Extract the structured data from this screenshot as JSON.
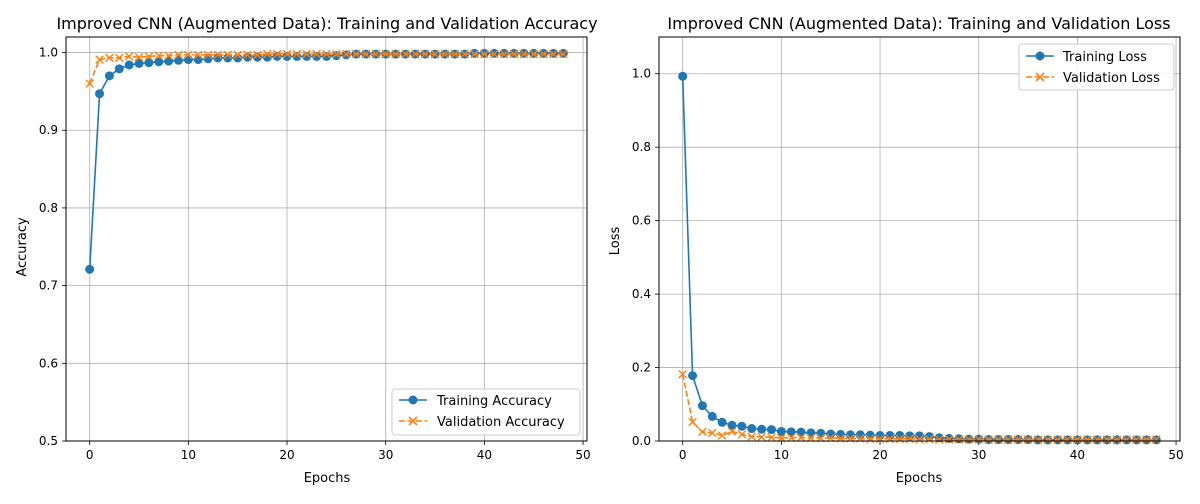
{
  "colors": {
    "training": "#1f77b4",
    "validation": "#ff7f0e",
    "grid": "#b0b0b0",
    "frame": "#000000"
  },
  "chart_data": [
    {
      "type": "line",
      "title": "Improved CNN (Augmented Data): Training and Validation Accuracy",
      "xlabel": "Epochs",
      "ylabel": "Accuracy",
      "xlim": [
        -2.4,
        50.4
      ],
      "ylim": [
        0.5,
        1.02
      ],
      "xticks": [
        0,
        10,
        20,
        30,
        40,
        50
      ],
      "yticks": [
        0.5,
        0.6,
        0.7,
        0.8,
        0.9,
        1.0
      ],
      "xtick_labels": [
        "0",
        "10",
        "20",
        "30",
        "40",
        "50"
      ],
      "ytick_labels": [
        "0.5",
        "0.6",
        "0.7",
        "0.8",
        "0.9",
        "1.0"
      ],
      "grid": true,
      "legend": "bottom-right",
      "series": [
        {
          "name": "Training Accuracy",
          "style": "solid",
          "marker": "circle",
          "color": "#1f77b4",
          "x": [
            0,
            1,
            2,
            3,
            4,
            5,
            6,
            7,
            8,
            9,
            10,
            11,
            12,
            13,
            14,
            15,
            16,
            17,
            18,
            19,
            20,
            21,
            22,
            23,
            24,
            25,
            26,
            27,
            28,
            29,
            30,
            31,
            32,
            33,
            34,
            35,
            36,
            37,
            38,
            39,
            40,
            41,
            42,
            43,
            44,
            45,
            46,
            47,
            48
          ],
          "y": [
            0.721,
            0.947,
            0.97,
            0.979,
            0.984,
            0.986,
            0.987,
            0.988,
            0.989,
            0.99,
            0.991,
            0.991,
            0.992,
            0.993,
            0.993,
            0.993,
            0.994,
            0.994,
            0.994,
            0.995,
            0.995,
            0.995,
            0.995,
            0.995,
            0.995,
            0.996,
            0.997,
            0.998,
            0.998,
            0.998,
            0.998,
            0.998,
            0.998,
            0.998,
            0.998,
            0.998,
            0.998,
            0.998,
            0.998,
            0.999,
            0.999,
            0.999,
            0.999,
            0.999,
            0.999,
            0.999,
            0.999,
            0.999,
            0.999
          ]
        },
        {
          "name": "Validation Accuracy",
          "style": "dashed",
          "marker": "x",
          "color": "#ff7f0e",
          "x": [
            0,
            1,
            2,
            3,
            4,
            5,
            6,
            7,
            8,
            9,
            10,
            11,
            12,
            13,
            14,
            15,
            16,
            17,
            18,
            19,
            20,
            21,
            22,
            23,
            24,
            25,
            26,
            27,
            28,
            29,
            30,
            31,
            32,
            33,
            34,
            35,
            36,
            37,
            38,
            39,
            40,
            41,
            42,
            43,
            44,
            45,
            46,
            47,
            48
          ],
          "y": [
            0.96,
            0.991,
            0.993,
            0.993,
            0.995,
            0.994,
            0.995,
            0.996,
            0.996,
            0.997,
            0.997,
            0.997,
            0.997,
            0.997,
            0.997,
            0.997,
            0.997,
            0.997,
            0.998,
            0.998,
            0.998,
            0.998,
            0.998,
            0.998,
            0.998,
            0.998,
            0.998,
            0.998,
            0.998,
            0.998,
            0.998,
            0.998,
            0.998,
            0.998,
            0.998,
            0.998,
            0.998,
            0.998,
            0.998,
            0.998,
            0.998,
            0.998,
            0.998,
            0.998,
            0.998,
            0.998,
            0.998,
            0.998,
            0.998
          ]
        }
      ]
    },
    {
      "type": "line",
      "title": "Improved CNN (Augmented Data): Training and Validation Loss",
      "xlabel": "Epochs",
      "ylabel": "Loss",
      "xlim": [
        -2.4,
        50.4
      ],
      "ylim": [
        0.0,
        1.1
      ],
      "xticks": [
        0,
        10,
        20,
        30,
        40,
        50
      ],
      "yticks": [
        0.0,
        0.2,
        0.4,
        0.6,
        0.8,
        1.0
      ],
      "xtick_labels": [
        "0",
        "10",
        "20",
        "30",
        "40",
        "50"
      ],
      "ytick_labels": [
        "0.0",
        "0.2",
        "0.4",
        "0.6",
        "0.8",
        "1.0"
      ],
      "grid": true,
      "legend": "top-right",
      "series": [
        {
          "name": "Training Loss",
          "style": "solid",
          "marker": "circle",
          "color": "#1f77b4",
          "x": [
            0,
            1,
            2,
            3,
            4,
            5,
            6,
            7,
            8,
            9,
            10,
            11,
            12,
            13,
            14,
            15,
            16,
            17,
            18,
            19,
            20,
            21,
            22,
            23,
            24,
            25,
            26,
            27,
            28,
            29,
            30,
            31,
            32,
            33,
            34,
            35,
            36,
            37,
            38,
            39,
            40,
            41,
            42,
            43,
            44,
            45,
            46,
            47,
            48
          ],
          "y": [
            0.993,
            0.178,
            0.096,
            0.067,
            0.051,
            0.043,
            0.04,
            0.034,
            0.032,
            0.031,
            0.026,
            0.025,
            0.024,
            0.022,
            0.021,
            0.019,
            0.018,
            0.017,
            0.017,
            0.016,
            0.015,
            0.015,
            0.015,
            0.014,
            0.014,
            0.012,
            0.009,
            0.007,
            0.006,
            0.005,
            0.005,
            0.004,
            0.004,
            0.004,
            0.004,
            0.004,
            0.003,
            0.003,
            0.003,
            0.003,
            0.003,
            0.003,
            0.003,
            0.003,
            0.003,
            0.003,
            0.003,
            0.003,
            0.003
          ]
        },
        {
          "name": "Validation Loss",
          "style": "dashed",
          "marker": "x",
          "color": "#ff7f0e",
          "x": [
            0,
            1,
            2,
            3,
            4,
            5,
            6,
            7,
            8,
            9,
            10,
            11,
            12,
            13,
            14,
            15,
            16,
            17,
            18,
            19,
            20,
            21,
            22,
            23,
            24,
            25,
            26,
            27,
            28,
            29,
            30,
            31,
            32,
            33,
            34,
            35,
            36,
            37,
            38,
            39,
            40,
            41,
            42,
            43,
            44,
            45,
            46,
            47,
            48
          ],
          "y": [
            0.182,
            0.052,
            0.025,
            0.022,
            0.015,
            0.026,
            0.018,
            0.012,
            0.011,
            0.01,
            0.008,
            0.009,
            0.009,
            0.008,
            0.008,
            0.008,
            0.007,
            0.007,
            0.007,
            0.006,
            0.006,
            0.006,
            0.006,
            0.006,
            0.005,
            0.005,
            0.004,
            0.004,
            0.004,
            0.004,
            0.004,
            0.004,
            0.004,
            0.004,
            0.004,
            0.004,
            0.004,
            0.004,
            0.004,
            0.004,
            0.004,
            0.004,
            0.004,
            0.004,
            0.004,
            0.004,
            0.004,
            0.004,
            0.004
          ]
        }
      ]
    }
  ]
}
